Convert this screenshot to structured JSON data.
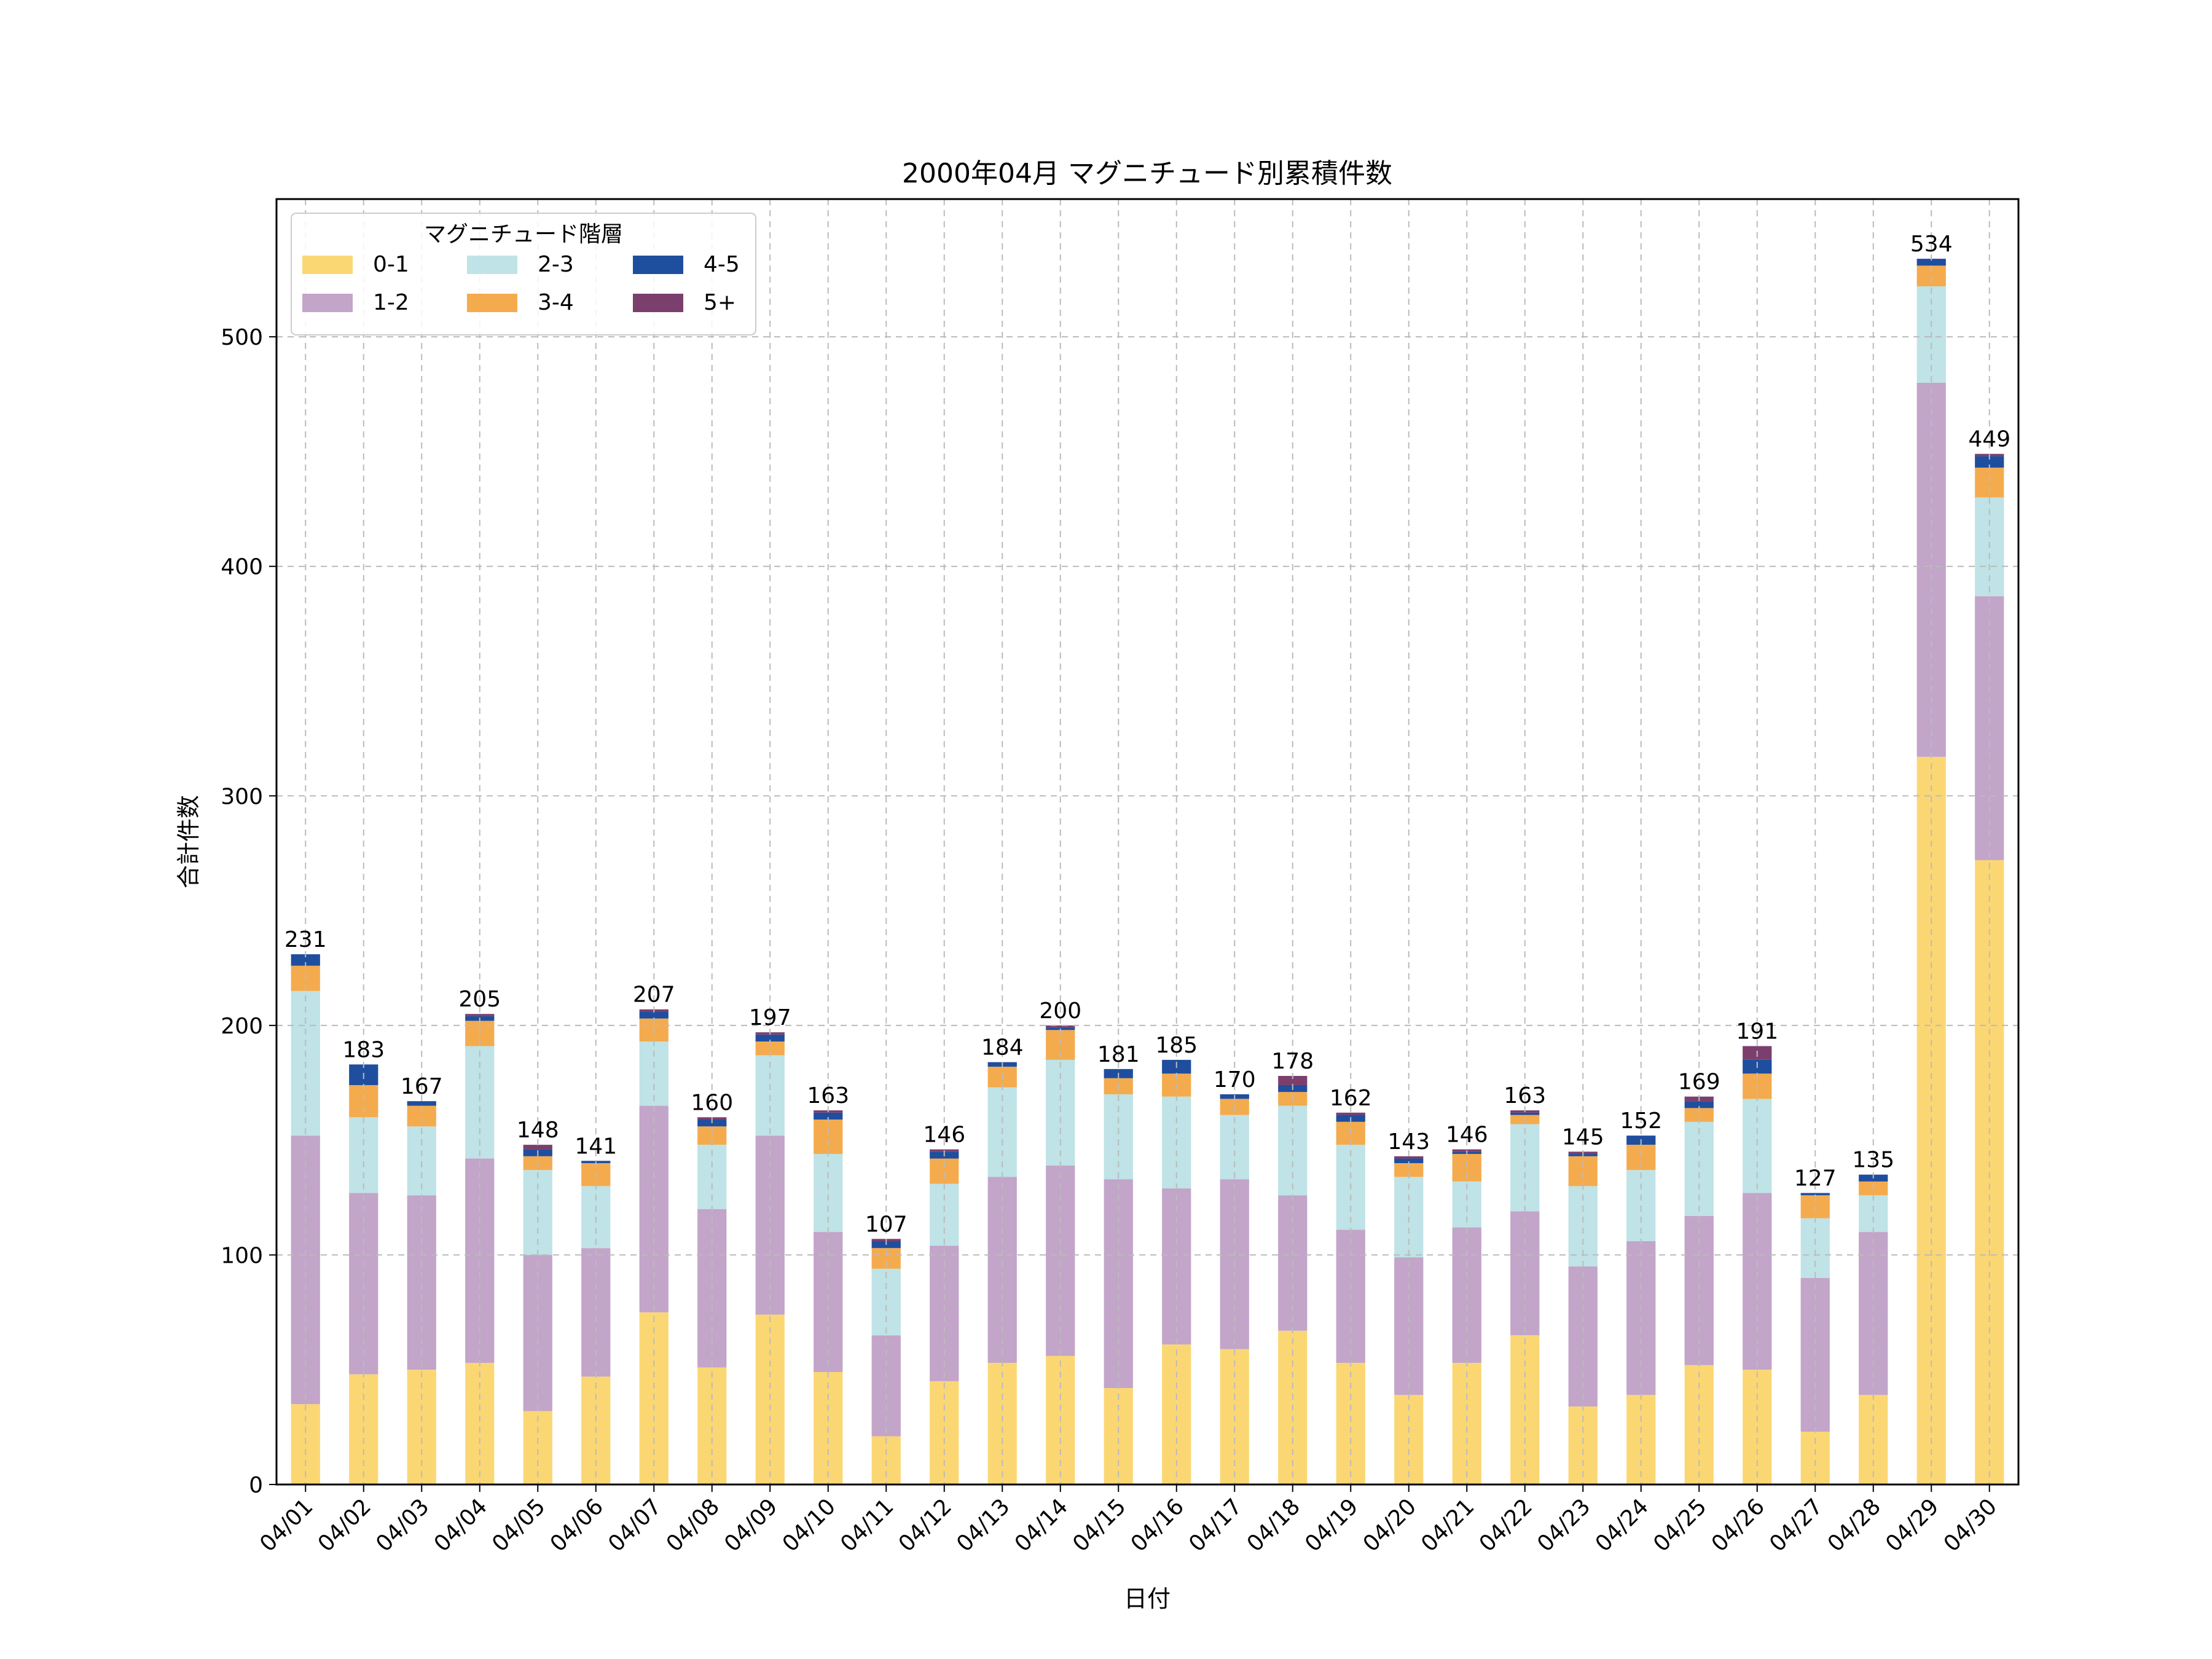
{
  "chart_data": {
    "type": "bar",
    "stacked": true,
    "title": "2000年04月 マグニチュード別累積件数",
    "xlabel": "日付",
    "ylabel": "合計件数",
    "ylim": [
      0,
      560
    ],
    "yticks": [
      0,
      100,
      200,
      300,
      400,
      500
    ],
    "grid": true,
    "legend_title": "マグニチュード階層",
    "legend_position": "top-left",
    "categories": [
      "04/01",
      "04/02",
      "04/03",
      "04/04",
      "04/05",
      "04/06",
      "04/07",
      "04/08",
      "04/09",
      "04/10",
      "04/11",
      "04/12",
      "04/13",
      "04/14",
      "04/15",
      "04/16",
      "04/17",
      "04/18",
      "04/19",
      "04/20",
      "04/21",
      "04/22",
      "04/23",
      "04/24",
      "04/25",
      "04/26",
      "04/27",
      "04/28",
      "04/29",
      "04/30"
    ],
    "series": [
      {
        "name": "0-1",
        "color": "#FBD774",
        "values": [
          35,
          48,
          50,
          53,
          32,
          47,
          75,
          51,
          74,
          49,
          21,
          45,
          53,
          56,
          42,
          61,
          59,
          67,
          53,
          39,
          53,
          65,
          34,
          39,
          52,
          50,
          23,
          39,
          317,
          272
        ]
      },
      {
        "name": "1-2",
        "color": "#C2A5C9",
        "values": [
          117,
          79,
          76,
          89,
          68,
          56,
          90,
          69,
          78,
          61,
          44,
          59,
          81,
          83,
          91,
          68,
          74,
          59,
          58,
          60,
          59,
          54,
          61,
          67,
          65,
          77,
          67,
          71,
          163,
          115
        ]
      },
      {
        "name": "2-3",
        "color": "#BFE3E6",
        "values": [
          63,
          33,
          30,
          49,
          37,
          27,
          28,
          28,
          35,
          34,
          29,
          27,
          39,
          46,
          37,
          40,
          28,
          39,
          37,
          35,
          20,
          38,
          35,
          31,
          41,
          41,
          26,
          16,
          42,
          43
        ]
      },
      {
        "name": "3-4",
        "color": "#F4AB4E",
        "values": [
          11,
          14,
          9,
          11,
          6,
          10,
          10,
          8,
          6,
          15,
          9,
          11,
          9,
          13,
          7,
          10,
          7,
          6,
          10,
          6,
          12,
          4,
          13,
          11,
          6,
          11,
          10,
          6,
          9,
          13
        ]
      },
      {
        "name": "4-5",
        "color": "#1F4E9E",
        "values": [
          5,
          9,
          2,
          2,
          3,
          1,
          3,
          3,
          3,
          3,
          3,
          3,
          2,
          1,
          4,
          6,
          2,
          3,
          3,
          2,
          1,
          1,
          1,
          4,
          3,
          6,
          1,
          3,
          3,
          5
        ]
      },
      {
        "name": "5+",
        "color": "#7B3F6E",
        "values": [
          0,
          0,
          0,
          1,
          2,
          0,
          1,
          1,
          1,
          1,
          1,
          1,
          0,
          1,
          0,
          0,
          0,
          4,
          1,
          1,
          1,
          1,
          1,
          0,
          2,
          6,
          0,
          0,
          0,
          1
        ]
      }
    ],
    "totals": [
      231,
      183,
      167,
      205,
      148,
      141,
      207,
      160,
      197,
      163,
      107,
      146,
      184,
      200,
      181,
      185,
      170,
      178,
      162,
      143,
      146,
      163,
      145,
      152,
      169,
      191,
      127,
      135,
      534,
      449
    ]
  }
}
